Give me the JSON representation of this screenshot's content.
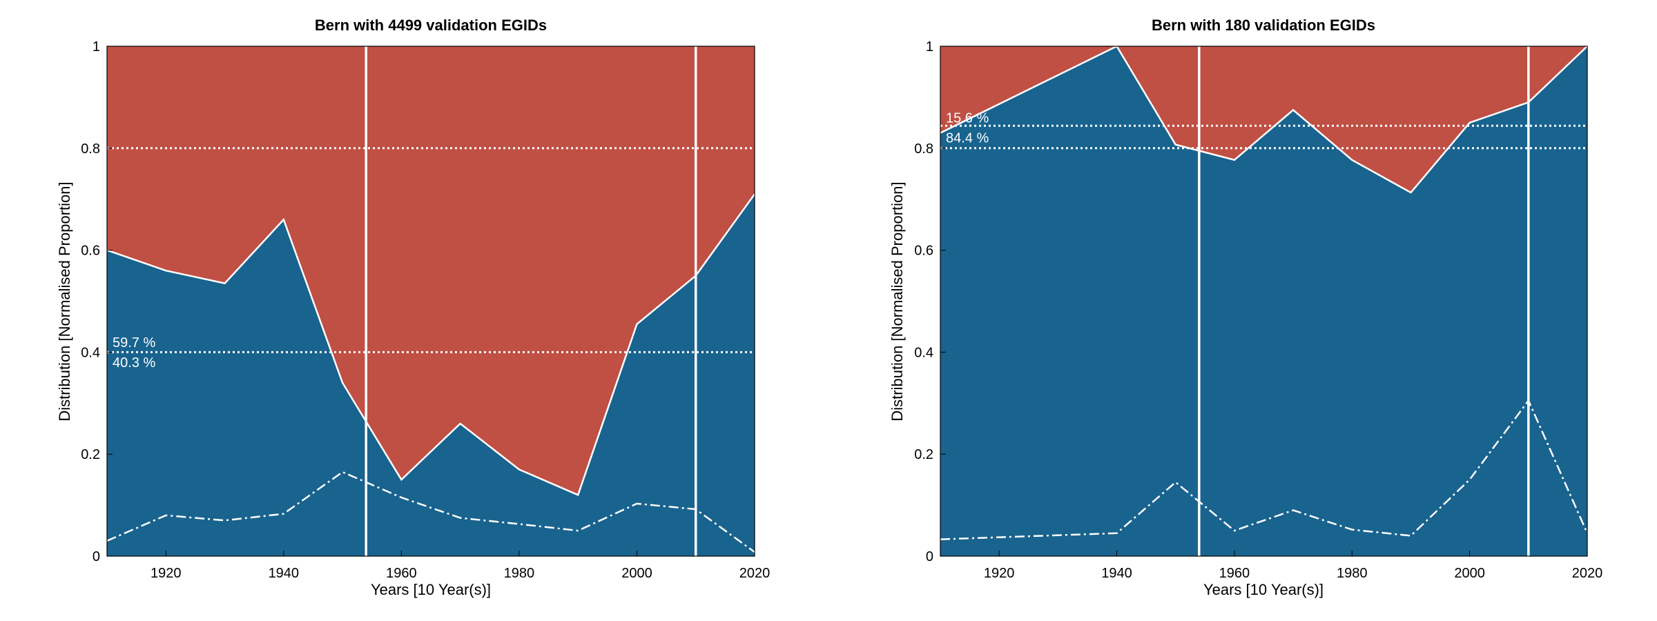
{
  "colors": {
    "upper_area": "#c04f44",
    "lower_area": "#19638f",
    "lines": "#ffffff",
    "frame": "#000000"
  },
  "chart_data": [
    {
      "type": "area",
      "title": "Bern with 4499 validation EGIDs",
      "xlabel": "Years [10 Year(s)]",
      "ylabel": "Distribution [Normalised Proportion]",
      "xlim": [
        1910,
        2020
      ],
      "ylim": [
        0,
        1
      ],
      "x_ticks": [
        1920,
        1940,
        1960,
        1980,
        2000,
        2020
      ],
      "y_ticks": [
        0,
        0.2,
        0.4,
        0.6,
        0.8,
        1
      ],
      "y_tick_labels": [
        "0",
        "0.2",
        "0.4",
        "0.6",
        "0.8",
        "1"
      ],
      "x": [
        1910,
        1920,
        1930,
        1940,
        1950,
        1960,
        1970,
        1980,
        1990,
        2000,
        2010,
        2020
      ],
      "boundary": [
        0.6,
        0.56,
        0.535,
        0.66,
        0.34,
        0.15,
        0.26,
        0.17,
        0.12,
        0.455,
        0.55,
        0.71
      ],
      "dashed_line": [
        0.03,
        0.08,
        0.07,
        0.083,
        0.165,
        0.115,
        0.075,
        0.063,
        0.05,
        0.103,
        0.092,
        0.008
      ],
      "threshold_lines": [
        0.4,
        0.8
      ],
      "vertical_lines": [
        1954,
        2010
      ],
      "annotations": {
        "upper_pct": "59.7 %",
        "lower_pct": "40.3 %",
        "y": 0.403
      },
      "grid": false
    },
    {
      "type": "area",
      "title": "Bern with 180 validation EGIDs",
      "xlabel": "Years [10 Year(s)]",
      "ylabel": "Distribution [Normalised Proportion]",
      "xlim": [
        1910,
        2020
      ],
      "ylim": [
        0,
        1
      ],
      "x_ticks": [
        1920,
        1940,
        1960,
        1980,
        2000,
        2020
      ],
      "y_ticks": [
        0,
        0.2,
        0.4,
        0.6,
        0.8,
        1
      ],
      "y_tick_labels": [
        "0",
        "0.2",
        "0.4",
        "0.6",
        "0.8",
        "1"
      ],
      "x": [
        1910,
        1940,
        1950,
        1960,
        1970,
        1980,
        1990,
        2000,
        2010,
        2020
      ],
      "boundary": [
        0.83,
        1.0,
        0.807,
        0.777,
        0.875,
        0.777,
        0.713,
        0.85,
        0.89,
        1.0
      ],
      "dashed_line": [
        0.033,
        0.045,
        0.145,
        0.05,
        0.09,
        0.052,
        0.04,
        0.15,
        0.305,
        0.045
      ],
      "threshold_lines": [
        0.844,
        0.8
      ],
      "vertical_lines": [
        1954,
        2010
      ],
      "annotations": {
        "upper_pct": "15.6 %",
        "lower_pct": "84.4 %",
        "y": 0.844
      },
      "grid": false
    }
  ]
}
